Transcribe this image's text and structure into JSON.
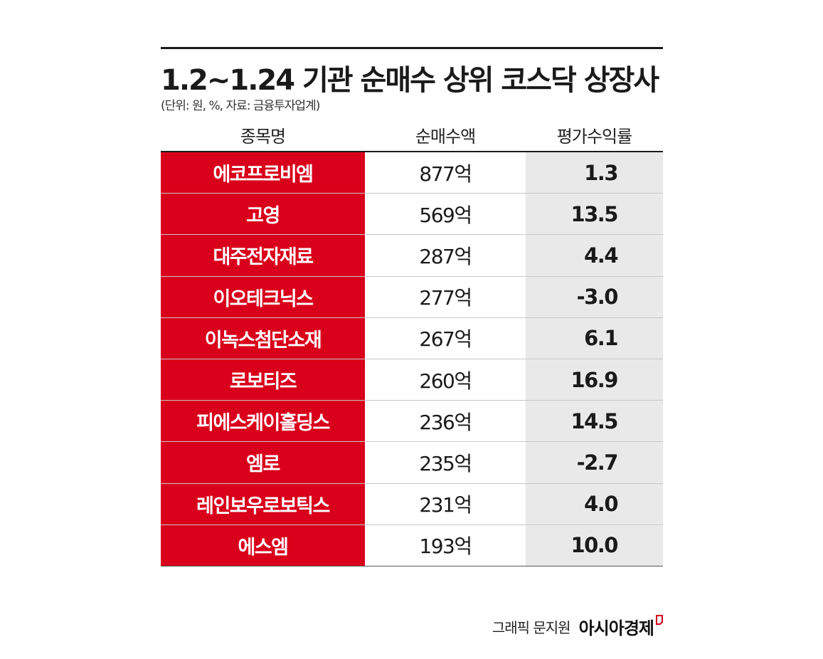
{
  "chart_data": {
    "type": "table",
    "title": "1.2~1.24 기관 순매수 상위 코스닥 상장사",
    "subtitle": "(단위: 원, %, 자료: 금융투자업계)",
    "columns": [
      "종목명",
      "순매수액",
      "평가수익률"
    ],
    "rows": [
      {
        "name": "에코프로비엠",
        "amount": "877억",
        "return": "1.3"
      },
      {
        "name": "고영",
        "amount": "569억",
        "return": "13.5"
      },
      {
        "name": "대주전자재료",
        "amount": "287억",
        "return": "4.4"
      },
      {
        "name": "이오테크닉스",
        "amount": "277억",
        "return": "-3.0"
      },
      {
        "name": "이녹스첨단소재",
        "amount": "267억",
        "return": "6.1"
      },
      {
        "name": "로보티즈",
        "amount": "260억",
        "return": "16.9"
      },
      {
        "name": "피에스케이홀딩스",
        "amount": "236억",
        "return": "14.5"
      },
      {
        "name": "엠로",
        "amount": "235억",
        "return": "-2.7"
      },
      {
        "name": "레인보우로보틱스",
        "amount": "231억",
        "return": "4.0"
      },
      {
        "name": "에스엠",
        "amount": "193억",
        "return": "10.0"
      }
    ]
  },
  "credit": {
    "text": "그래픽 문지원",
    "logo": "아시아경제"
  },
  "colors": {
    "name_cell": "#d9001b",
    "return_cell": "#e9e9e9",
    "logo_mark": "#d9001b"
  }
}
